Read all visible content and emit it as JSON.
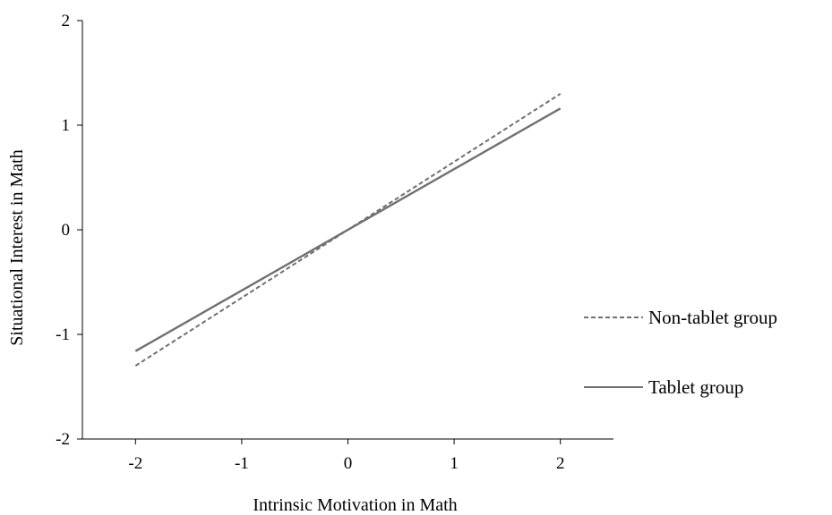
{
  "chart_data": {
    "type": "line",
    "xlabel": "Intrinsic Motivation in Math",
    "ylabel": "Situational Interest in Math",
    "xlim": [
      -2.5,
      2.5
    ],
    "ylim": [
      -2,
      2
    ],
    "x_ticks": [
      -2,
      -1,
      0,
      1,
      2
    ],
    "y_ticks": [
      -2,
      -1,
      0,
      1,
      2
    ],
    "grid": false,
    "legend_position": "right",
    "series": [
      {
        "name": "Non-tablet group",
        "style": "dashed",
        "color": "#707070",
        "x": [
          -2,
          2
        ],
        "y": [
          -1.3,
          1.3
        ]
      },
      {
        "name": "Tablet group",
        "style": "solid",
        "color": "#707070",
        "x": [
          -2,
          2
        ],
        "y": [
          -1.16,
          1.16
        ]
      }
    ]
  }
}
